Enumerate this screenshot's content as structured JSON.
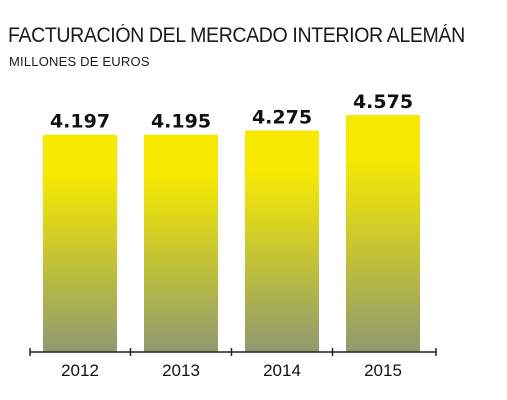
{
  "title": "FACTURACIÓN DEL MERCADO INTERIOR ALEMÁN",
  "subtitle": "MILLONES DE EUROS",
  "colors": {
    "bar_top": "#f7ea00",
    "bar_bottom": "#8e9a70",
    "axis": "#222222",
    "text": "#111111"
  },
  "chart_data": {
    "type": "bar",
    "title": "FACTURACIÓN DEL MERCADO INTERIOR ALEMÁN",
    "subtitle": "MILLONES DE EUROS",
    "xlabel": "",
    "ylabel": "",
    "categories": [
      "2012",
      "2013",
      "2014",
      "2015"
    ],
    "values": [
      4197,
      4195,
      4275,
      4575
    ],
    "value_labels": [
      "4.197",
      "4.195",
      "4.275",
      "4.575"
    ],
    "ylim": [
      0,
      4575
    ],
    "grid": false,
    "legend": "none"
  }
}
